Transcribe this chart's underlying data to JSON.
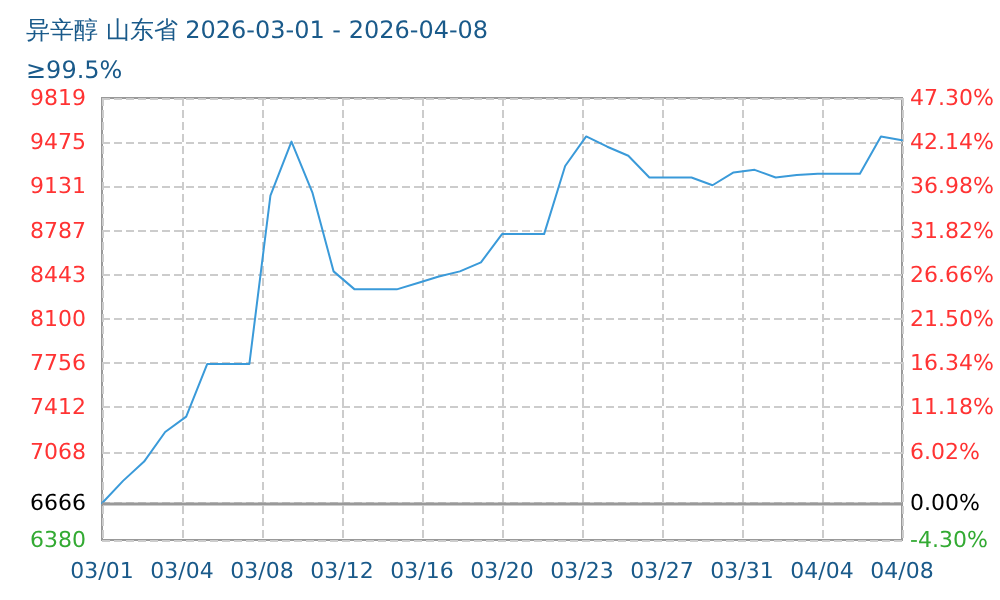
{
  "chart_data": {
    "type": "line",
    "title": "异辛醇 山东省 2026-03-01 - 2026-04-08",
    "subtitle": "≥99.5%",
    "x": [
      "2026-03-01",
      "2026-03-02",
      "2026-03-03",
      "2026-03-04",
      "2026-03-05",
      "2026-03-06",
      "2026-03-07",
      "2026-03-08",
      "2026-03-09",
      "2026-03-10",
      "2026-03-11",
      "2026-03-12",
      "2026-03-13",
      "2026-03-14",
      "2026-03-15",
      "2026-03-16",
      "2026-03-17",
      "2026-03-18",
      "2026-03-19",
      "2026-03-20",
      "2026-03-21",
      "2026-03-22",
      "2026-03-23",
      "2026-03-24",
      "2026-03-25",
      "2026-03-26",
      "2026-03-27",
      "2026-03-28",
      "2026-03-29",
      "2026-03-30",
      "2026-03-31",
      "2026-04-01",
      "2026-04-02",
      "2026-04-03",
      "2026-04-04",
      "2026-04-05",
      "2026-04-06",
      "2026-04-07",
      "2026-04-08"
    ],
    "series": [
      {
        "color": "#3a9ad9",
        "values": [
          6666,
          6840,
          6990,
          7220,
          7340,
          7750,
          7750,
          7750,
          9060,
          9480,
          9080,
          8470,
          8330,
          8330,
          8330,
          8380,
          8430,
          8470,
          8540,
          8760,
          8760,
          8760,
          9290,
          9520,
          9440,
          9370,
          9200,
          9200,
          9200,
          9140,
          9240,
          9260,
          9200,
          9220,
          9230,
          9230,
          9230,
          9520,
          9490
        ]
      }
    ],
    "xlim": [
      "2026-03-01",
      "2026-04-08"
    ],
    "xticks": [
      {
        "value": "2026-03-01",
        "label": "03/01"
      },
      {
        "value": "2026-03-04T19:12",
        "label": "03/04"
      },
      {
        "value": "2026-03-08T14:24",
        "label": "03/08"
      },
      {
        "value": "2026-03-12T09:36",
        "label": "03/12"
      },
      {
        "value": "2026-03-16T04:48",
        "label": "03/16"
      },
      {
        "value": "2026-03-20",
        "label": "03/20"
      },
      {
        "value": "2026-03-23T19:12",
        "label": "03/23"
      },
      {
        "value": "2026-03-27T14:24",
        "label": "03/27"
      },
      {
        "value": "2026-03-31T09:36",
        "label": "03/31"
      },
      {
        "value": "2026-04-04T04:48",
        "label": "04/04"
      },
      {
        "value": "2026-04-08",
        "label": "04/08"
      }
    ],
    "ylim": [
      6380,
      9819
    ],
    "yticks": [
      6380,
      6666,
      7068,
      7412,
      7756,
      8100,
      8443,
      8787,
      9131,
      9475,
      9819
    ],
    "y2lim": [
      -4.3,
      47.3
    ],
    "y2ticks": [
      {
        "value": -4.3,
        "label": "-4.30%"
      },
      {
        "value": 0,
        "label": "0.00%"
      },
      {
        "value": 6.02,
        "label": "6.02%"
      },
      {
        "value": 11.18,
        "label": "11.18%"
      },
      {
        "value": 16.34,
        "label": "16.34%"
      },
      {
        "value": 21.5,
        "label": "21.50%"
      },
      {
        "value": 26.66,
        "label": "26.66%"
      },
      {
        "value": 31.82,
        "label": "31.82%"
      },
      {
        "value": 36.98,
        "label": "36.98%"
      },
      {
        "value": 42.14,
        "label": "42.14%"
      },
      {
        "value": 47.3,
        "label": "47.30%"
      }
    ],
    "ref_lines": [
      {
        "axis": "y",
        "value": 6666,
        "color": "#999999"
      }
    ],
    "grid": true,
    "marker": "none",
    "line_style": "solid"
  }
}
